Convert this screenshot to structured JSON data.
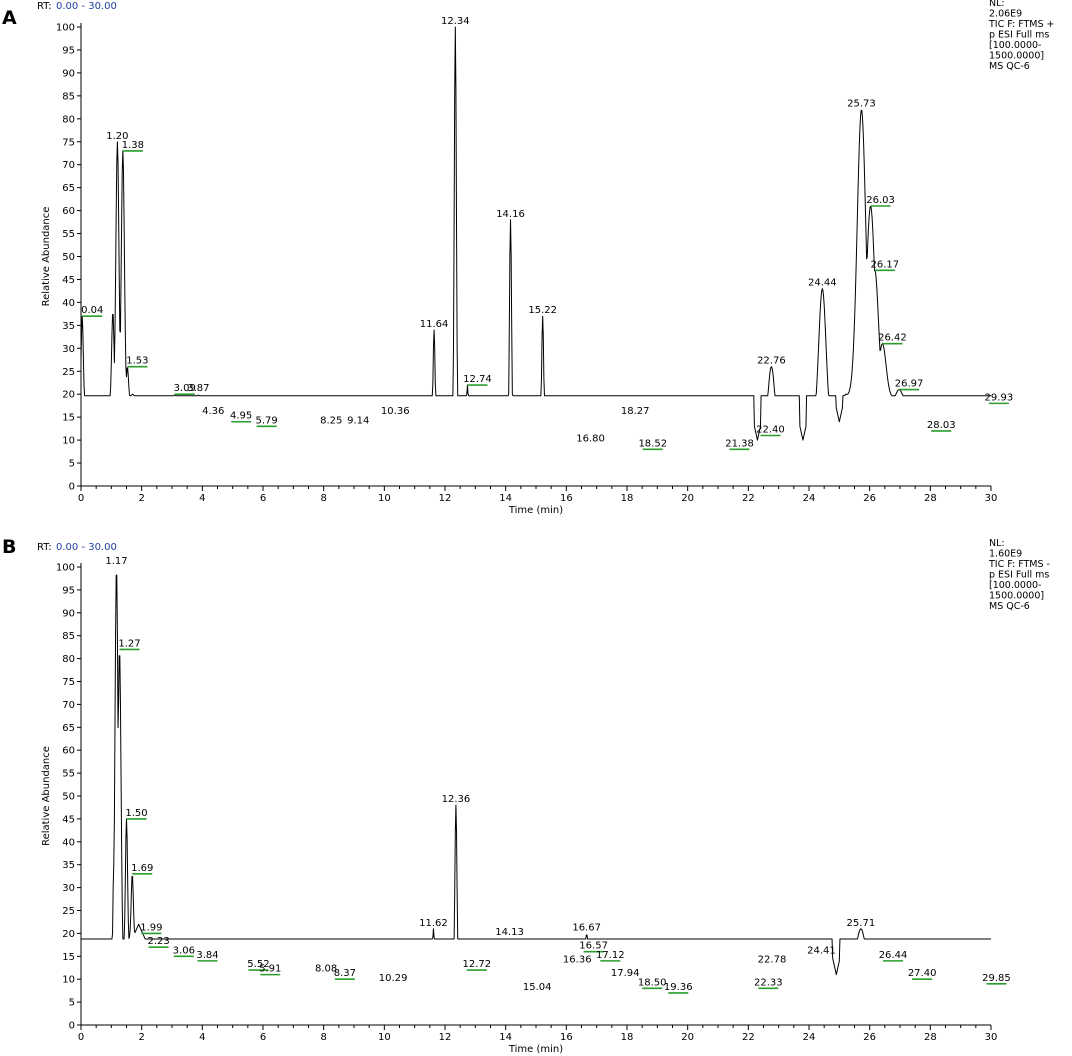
{
  "chart_data": [
    {
      "type": "line",
      "panel": "A",
      "rt_label": "RT:",
      "rt_range": "0.00 - 30.00",
      "xlabel": "Time (min)",
      "ylabel": "Relative Abundance",
      "xlim": [
        0,
        30
      ],
      "ylim": [
        0,
        100
      ],
      "x_ticks": [
        0,
        2,
        4,
        6,
        8,
        10,
        12,
        14,
        16,
        18,
        20,
        22,
        24,
        26,
        28,
        30
      ],
      "y_ticks": [
        0,
        5,
        10,
        15,
        20,
        25,
        30,
        35,
        40,
        45,
        50,
        55,
        60,
        65,
        70,
        75,
        80,
        85,
        90,
        95,
        100
      ],
      "info": [
        "NL:",
        "2.06E9",
        "TIC F: FTMS +",
        "p ESI Full ms",
        "[100.0000-",
        "1500.0000]",
        "MS QC-6"
      ],
      "peaks": [
        {
          "rt": 0.04,
          "label": "0.04",
          "intensity": 37,
          "marker": true
        },
        {
          "rt": 1.2,
          "label": "1.20",
          "intensity": 75,
          "marker": false
        },
        {
          "rt": 1.38,
          "label": "1.38",
          "intensity": 73,
          "marker": true
        },
        {
          "rt": 1.53,
          "label": "1.53",
          "intensity": 26,
          "marker": true
        },
        {
          "rt": 3.09,
          "label": "3.09",
          "intensity": 20,
          "marker": true
        },
        {
          "rt": 3.87,
          "label": "3.87",
          "intensity": 20,
          "marker": false
        },
        {
          "rt": 4.36,
          "label": "4.36",
          "intensity": 15,
          "marker": false
        },
        {
          "rt": 4.95,
          "label": "4.95",
          "intensity": 14,
          "marker": true
        },
        {
          "rt": 5.79,
          "label": "5.79",
          "intensity": 13,
          "marker": true
        },
        {
          "rt": 8.25,
          "label": "8.25",
          "intensity": 13,
          "marker": false
        },
        {
          "rt": 9.14,
          "label": "9.14",
          "intensity": 13,
          "marker": false
        },
        {
          "rt": 10.36,
          "label": "10.36",
          "intensity": 15,
          "marker": false
        },
        {
          "rt": 11.64,
          "label": "11.64",
          "intensity": 34,
          "marker": false
        },
        {
          "rt": 12.34,
          "label": "12.34",
          "intensity": 100,
          "marker": false
        },
        {
          "rt": 12.74,
          "label": "12.74",
          "intensity": 22,
          "marker": true
        },
        {
          "rt": 14.16,
          "label": "14.16",
          "intensity": 58,
          "marker": false
        },
        {
          "rt": 15.22,
          "label": "15.22",
          "intensity": 37,
          "marker": false
        },
        {
          "rt": 16.8,
          "label": "16.80",
          "intensity": 9,
          "marker": false
        },
        {
          "rt": 18.27,
          "label": "18.27",
          "intensity": 15,
          "marker": false
        },
        {
          "rt": 18.52,
          "label": "18.52",
          "intensity": 8,
          "marker": true
        },
        {
          "rt": 21.38,
          "label": "21.38",
          "intensity": 8,
          "marker": true
        },
        {
          "rt": 22.4,
          "label": "22.40",
          "intensity": 11,
          "marker": true
        },
        {
          "rt": 22.76,
          "label": "22.76",
          "intensity": 26,
          "marker": false
        },
        {
          "rt": 24.44,
          "label": "24.44",
          "intensity": 43,
          "marker": false
        },
        {
          "rt": 25.73,
          "label": "25.73",
          "intensity": 82,
          "marker": false
        },
        {
          "rt": 26.03,
          "label": "26.03",
          "intensity": 61,
          "marker": true
        },
        {
          "rt": 26.17,
          "label": "26.17",
          "intensity": 47,
          "marker": true
        },
        {
          "rt": 26.42,
          "label": "26.42",
          "intensity": 31,
          "marker": true
        },
        {
          "rt": 26.97,
          "label": "26.97",
          "intensity": 21,
          "marker": true
        },
        {
          "rt": 28.03,
          "label": "28.03",
          "intensity": 12,
          "marker": true
        },
        {
          "rt": 29.93,
          "label": "29.93",
          "intensity": 18,
          "marker": true
        }
      ],
      "baseline": [
        [
          0,
          17
        ],
        [
          0.5,
          18
        ],
        [
          0.9,
          17
        ],
        [
          1.6,
          19
        ],
        [
          2,
          18
        ],
        [
          3,
          16
        ],
        [
          4,
          15
        ],
        [
          5,
          14
        ],
        [
          6,
          13
        ],
        [
          7,
          12
        ],
        [
          8,
          11.5
        ],
        [
          9,
          11
        ],
        [
          10,
          10.5
        ],
        [
          11,
          10
        ],
        [
          12,
          9.5
        ],
        [
          13,
          9
        ],
        [
          14,
          8.8
        ],
        [
          15,
          8.5
        ],
        [
          16,
          8
        ],
        [
          17,
          7.5
        ],
        [
          18,
          7.3
        ],
        [
          19,
          7
        ],
        [
          20,
          7
        ],
        [
          21,
          7.2
        ],
        [
          22,
          7.5
        ],
        [
          23,
          9
        ],
        [
          24,
          10
        ],
        [
          24.7,
          14
        ],
        [
          25.2,
          20
        ],
        [
          26.8,
          19
        ],
        [
          27.5,
          14
        ],
        [
          28,
          11.5
        ],
        [
          28.5,
          10
        ],
        [
          29,
          9
        ],
        [
          29.5,
          9
        ],
        [
          29.8,
          13
        ],
        [
          30,
          17
        ]
      ],
      "valleys": [
        [
          22.3,
          10
        ],
        [
          23.8,
          10
        ],
        [
          25.0,
          14
        ]
      ],
      "extra_peaks": [
        [
          1.05,
          38,
          0.04
        ],
        [
          1.7,
          20,
          0.06
        ],
        [
          2.0,
          19,
          0.08
        ],
        [
          2.4,
          18,
          0.08
        ],
        [
          2.7,
          18,
          0.06
        ],
        [
          3.5,
          17,
          0.06
        ],
        [
          4.7,
          15,
          0.06
        ],
        [
          7.0,
          13,
          0.1
        ],
        [
          7.7,
          12.5,
          0.08
        ],
        [
          8.6,
          13,
          0.08
        ],
        [
          11.2,
          11,
          0.06
        ],
        [
          12.05,
          14,
          0.05
        ],
        [
          12.55,
          13,
          0.05
        ],
        [
          13.4,
          12,
          0.05
        ],
        [
          13.8,
          11,
          0.05
        ],
        [
          14.5,
          12,
          0.05
        ],
        [
          15.6,
          10,
          0.05
        ],
        [
          16.2,
          9,
          0.08
        ],
        [
          17.5,
          8,
          0.08
        ]
      ]
    },
    {
      "type": "line",
      "panel": "B",
      "rt_label": "RT:",
      "rt_range": "0.00 - 30.00",
      "xlabel": "Time (min)",
      "ylabel": "Relative Abundance",
      "xlim": [
        0,
        30
      ],
      "ylim": [
        0,
        100
      ],
      "x_ticks": [
        0,
        2,
        4,
        6,
        8,
        10,
        12,
        14,
        16,
        18,
        20,
        22,
        24,
        26,
        28,
        30
      ],
      "y_ticks": [
        0,
        5,
        10,
        15,
        20,
        25,
        30,
        35,
        40,
        45,
        50,
        55,
        60,
        65,
        70,
        75,
        80,
        85,
        90,
        95,
        100
      ],
      "info": [
        "NL:",
        "1.60E9",
        "TIC F: FTMS -",
        "p ESI Full ms",
        "[100.0000-",
        "1500.0000]",
        "MS QC-6"
      ],
      "peaks": [
        {
          "rt": 1.17,
          "label": "1.17",
          "intensity": 100,
          "marker": false
        },
        {
          "rt": 1.27,
          "label": "1.27",
          "intensity": 82,
          "marker": true
        },
        {
          "rt": 1.5,
          "label": "1.50",
          "intensity": 45,
          "marker": true
        },
        {
          "rt": 1.69,
          "label": "1.69",
          "intensity": 33,
          "marker": true
        },
        {
          "rt": 1.99,
          "label": "1.99",
          "intensity": 20,
          "marker": true
        },
        {
          "rt": 2.23,
          "label": "2.23",
          "intensity": 17,
          "marker": true
        },
        {
          "rt": 3.06,
          "label": "3.06",
          "intensity": 15,
          "marker": true
        },
        {
          "rt": 3.84,
          "label": "3.84",
          "intensity": 14,
          "marker": true
        },
        {
          "rt": 5.52,
          "label": "5.52",
          "intensity": 12,
          "marker": true
        },
        {
          "rt": 5.91,
          "label": "5.91",
          "intensity": 11,
          "marker": true
        },
        {
          "rt": 8.08,
          "label": "8.08",
          "intensity": 11,
          "marker": false
        },
        {
          "rt": 8.37,
          "label": "8.37",
          "intensity": 10,
          "marker": true
        },
        {
          "rt": 10.29,
          "label": "10.29",
          "intensity": 9,
          "marker": false
        },
        {
          "rt": 11.62,
          "label": "11.62",
          "intensity": 21,
          "marker": false
        },
        {
          "rt": 12.36,
          "label": "12.36",
          "intensity": 48,
          "marker": false
        },
        {
          "rt": 12.72,
          "label": "12.72",
          "intensity": 12,
          "marker": true
        },
        {
          "rt": 14.13,
          "label": "14.13",
          "intensity": 19,
          "marker": false
        },
        {
          "rt": 15.04,
          "label": "15.04",
          "intensity": 7,
          "marker": false
        },
        {
          "rt": 16.36,
          "label": "16.36",
          "intensity": 13,
          "marker": false
        },
        {
          "rt": 16.57,
          "label": "16.57",
          "intensity": 16,
          "marker": true
        },
        {
          "rt": 16.67,
          "label": "16.67",
          "intensity": 20,
          "marker": false
        },
        {
          "rt": 17.12,
          "label": "17.12",
          "intensity": 14,
          "marker": true
        },
        {
          "rt": 17.94,
          "label": "17.94",
          "intensity": 10,
          "marker": false
        },
        {
          "rt": 18.5,
          "label": "18.50",
          "intensity": 8,
          "marker": true
        },
        {
          "rt": 19.36,
          "label": "19.36",
          "intensity": 7,
          "marker": true
        },
        {
          "rt": 22.33,
          "label": "22.33",
          "intensity": 8,
          "marker": true
        },
        {
          "rt": 22.78,
          "label": "22.78",
          "intensity": 13,
          "marker": false
        },
        {
          "rt": 24.41,
          "label": "24.41",
          "intensity": 15,
          "marker": false
        },
        {
          "rt": 25.71,
          "label": "25.71",
          "intensity": 21,
          "marker": false
        },
        {
          "rt": 26.44,
          "label": "26.44",
          "intensity": 14,
          "marker": true
        },
        {
          "rt": 27.4,
          "label": "27.40",
          "intensity": 10,
          "marker": true
        },
        {
          "rt": 29.85,
          "label": "29.85",
          "intensity": 9,
          "marker": true
        }
      ],
      "baseline": [
        [
          0,
          9
        ],
        [
          0.3,
          8
        ],
        [
          0.9,
          8.5
        ],
        [
          1.05,
          9
        ],
        [
          1.9,
          22
        ],
        [
          2.3,
          16
        ],
        [
          3,
          15
        ],
        [
          4,
          14
        ],
        [
          5,
          13
        ],
        [
          6,
          11.5
        ],
        [
          7,
          10.5
        ],
        [
          8,
          10
        ],
        [
          9,
          9.5
        ],
        [
          10,
          9
        ],
        [
          11,
          8.5
        ],
        [
          12,
          8.2
        ],
        [
          13,
          8
        ],
        [
          14,
          7.6
        ],
        [
          15,
          7.3
        ],
        [
          16,
          9
        ],
        [
          16.4,
          12
        ],
        [
          17.3,
          10
        ],
        [
          18,
          8.5
        ],
        [
          19,
          7.5
        ],
        [
          20,
          7
        ],
        [
          21,
          7
        ],
        [
          22,
          7.3
        ],
        [
          23,
          8.5
        ],
        [
          24,
          9
        ],
        [
          25,
          11
        ],
        [
          26,
          16
        ],
        [
          26.6,
          12
        ],
        [
          27,
          11
        ],
        [
          28,
          10
        ],
        [
          29,
          9
        ],
        [
          29.6,
          8.5
        ],
        [
          29.85,
          9
        ],
        [
          30,
          8
        ]
      ],
      "valleys": [
        [
          24.9,
          11
        ]
      ],
      "extra_peaks": [
        [
          1.08,
          35,
          0.03
        ],
        [
          2.6,
          17,
          0.06
        ],
        [
          4.5,
          14,
          0.06
        ],
        [
          7.0,
          11.5,
          0.08
        ],
        [
          9.2,
          10,
          0.08
        ],
        [
          11.3,
          10,
          0.05
        ],
        [
          12.05,
          12,
          0.05
        ],
        [
          13.9,
          9,
          0.05
        ],
        [
          15.5,
          8,
          0.05
        ],
        [
          18.8,
          8,
          0.08
        ],
        [
          21.5,
          8,
          0.08
        ],
        [
          23.5,
          9,
          0.1
        ]
      ]
    }
  ]
}
